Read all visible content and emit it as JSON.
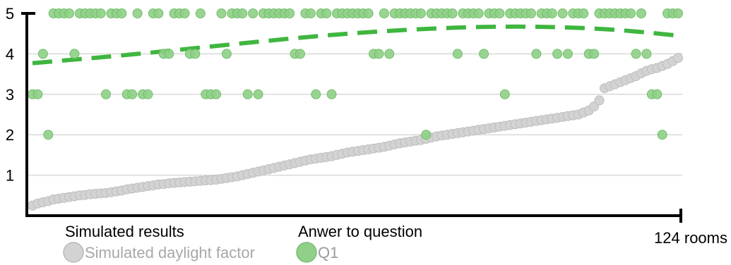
{
  "chart_data": {
    "type": "scatter",
    "ylim": [
      0,
      5
    ],
    "y_ticks": [
      "1",
      "2",
      "3",
      "4",
      "5"
    ],
    "x_end_label": "124 rooms",
    "x_count": 124,
    "grid": true,
    "legend": {
      "simulated_heading": "Simulated results",
      "simulated_entry": "Simulated daylight factor",
      "answer_heading": "Anwer to question",
      "answer_entry": "Q1"
    },
    "colors": {
      "simulated": "#d3d3d3",
      "answers": "#8fcf87",
      "trend": "#3fb63f",
      "grid": "#d9d9d9"
    },
    "series": [
      {
        "name": "Simulated daylight factor",
        "values": [
          0.25,
          0.3,
          0.33,
          0.36,
          0.4,
          0.42,
          0.44,
          0.46,
          0.48,
          0.5,
          0.51,
          0.53,
          0.54,
          0.55,
          0.56,
          0.58,
          0.6,
          0.62,
          0.65,
          0.67,
          0.69,
          0.71,
          0.73,
          0.75,
          0.77,
          0.78,
          0.8,
          0.81,
          0.82,
          0.83,
          0.84,
          0.85,
          0.86,
          0.87,
          0.88,
          0.89,
          0.91,
          0.93,
          0.95,
          0.97,
          1.0,
          1.03,
          1.06,
          1.09,
          1.12,
          1.15,
          1.18,
          1.21,
          1.24,
          1.27,
          1.3,
          1.33,
          1.36,
          1.39,
          1.41,
          1.43,
          1.45,
          1.47,
          1.5,
          1.53,
          1.56,
          1.58,
          1.6,
          1.62,
          1.64,
          1.66,
          1.68,
          1.7,
          1.73,
          1.76,
          1.79,
          1.81,
          1.83,
          1.85,
          1.87,
          1.9,
          1.93,
          1.96,
          1.98,
          2.0,
          2.02,
          2.04,
          2.06,
          2.08,
          2.1,
          2.12,
          2.14,
          2.16,
          2.18,
          2.2,
          2.22,
          2.24,
          2.26,
          2.28,
          2.3,
          2.32,
          2.34,
          2.36,
          2.38,
          2.4,
          2.42,
          2.44,
          2.46,
          2.48,
          2.5,
          2.55,
          2.6,
          2.7,
          2.85,
          3.15,
          3.2,
          3.25,
          3.3,
          3.35,
          3.4,
          3.45,
          3.52,
          3.58,
          3.62,
          3.65,
          3.7,
          3.75,
          3.82,
          3.9
        ]
      },
      {
        "name": "Q1",
        "values": [
          3,
          3,
          4,
          2,
          5,
          5,
          5,
          5,
          4,
          5,
          5,
          5,
          5,
          5,
          3,
          5,
          5,
          5,
          3,
          3,
          5,
          3,
          3,
          5,
          5,
          4,
          4,
          5,
          5,
          5,
          4,
          4,
          5,
          3,
          3,
          3,
          5,
          4,
          5,
          5,
          5,
          3,
          5,
          3,
          5,
          5,
          5,
          5,
          5,
          5,
          4,
          4,
          5,
          5,
          3,
          5,
          5,
          3,
          5,
          5,
          5,
          5,
          5,
          5,
          5,
          4,
          4,
          5,
          4,
          5,
          5,
          5,
          5,
          5,
          5,
          2,
          5,
          5,
          5,
          5,
          5,
          4,
          5,
          5,
          5,
          5,
          4,
          5,
          5,
          5,
          3,
          5,
          5,
          5,
          5,
          5,
          4,
          5,
          5,
          5,
          4,
          5,
          4,
          5,
          5,
          5,
          4,
          4,
          5,
          5,
          5,
          5,
          5,
          5,
          5,
          4,
          5,
          4,
          3,
          3,
          2,
          5,
          5,
          5
        ]
      }
    ],
    "trend_line": [
      {
        "x": 1,
        "y": 3.77
      },
      {
        "x": 20,
        "y": 3.98
      },
      {
        "x": 40,
        "y": 4.25
      },
      {
        "x": 60,
        "y": 4.5
      },
      {
        "x": 80,
        "y": 4.65
      },
      {
        "x": 93,
        "y": 4.68
      },
      {
        "x": 105,
        "y": 4.65
      },
      {
        "x": 115,
        "y": 4.57
      },
      {
        "x": 124,
        "y": 4.45
      }
    ]
  }
}
